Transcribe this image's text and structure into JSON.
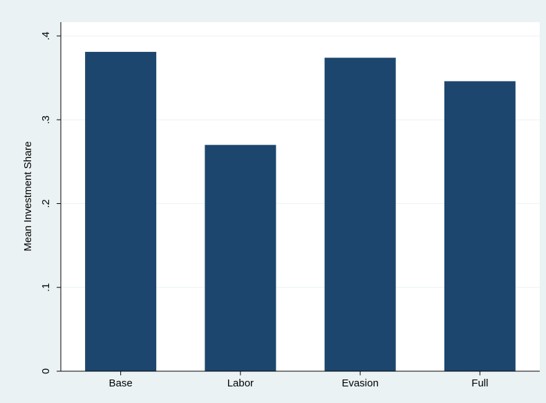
{
  "chart_data": {
    "type": "bar",
    "categories": [
      "Base",
      "Labor",
      "Evasion",
      "Full"
    ],
    "values": [
      0.381,
      0.27,
      0.374,
      0.346
    ],
    "ylabel": "Mean Investment Share",
    "ylim": [
      0,
      0.42
    ],
    "yticks": [
      {
        "value": 0,
        "label": "0"
      },
      {
        "value": 0.1,
        "label": ".1"
      },
      {
        "value": 0.2,
        "label": ".2"
      },
      {
        "value": 0.3,
        "label": ".3"
      },
      {
        "value": 0.4,
        "label": ".4"
      }
    ],
    "grid": true,
    "legend": "none",
    "colors": {
      "bar": "#1c466e",
      "background": "#eaf2f3",
      "plot_background": "#ffffff",
      "grid": "#eaf2f3"
    }
  }
}
